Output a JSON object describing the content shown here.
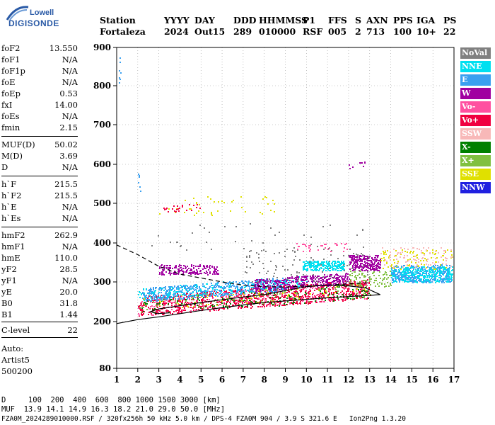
{
  "logo": {
    "line1": "Lowell",
    "line2": "DIGISONDE"
  },
  "header": {
    "row1": [
      "Station",
      "YYYY",
      "DAY",
      "DDD",
      "HHMMSS",
      "P1",
      "FFS",
      "S",
      "AXN",
      "PPS",
      "IGA",
      "PS"
    ],
    "row2": [
      "Fortaleza",
      "2024",
      "Out15",
      "289",
      "010000",
      "RSF",
      "005",
      "2",
      "713",
      "100",
      "10+",
      "22"
    ]
  },
  "params_group1": [
    {
      "name": "foF2",
      "value": "13.550"
    },
    {
      "name": "foF1",
      "value": "N/A"
    },
    {
      "name": "foF1p",
      "value": "N/A"
    },
    {
      "name": "foE",
      "value": "N/A"
    },
    {
      "name": "foEp",
      "value": "0.53"
    },
    {
      "name": "fxI",
      "value": "14.00"
    },
    {
      "name": "foEs",
      "value": "N/A"
    },
    {
      "name": "fmin",
      "value": "2.15"
    }
  ],
  "params_group2": [
    {
      "name": "MUF(D)",
      "value": "50.02"
    },
    {
      "name": "M(D)",
      "value": "3.69"
    },
    {
      "name": "D",
      "value": "N/A"
    }
  ],
  "params_group3": [
    {
      "name": "h`F",
      "value": "215.5"
    },
    {
      "name": "h`F2",
      "value": "215.5"
    },
    {
      "name": "h`E",
      "value": "N/A"
    },
    {
      "name": "h`Es",
      "value": "N/A"
    }
  ],
  "params_group4": [
    {
      "name": "hmF2",
      "value": "262.9"
    },
    {
      "name": "hmF1",
      "value": "N/A"
    },
    {
      "name": "hmE",
      "value": "110.0"
    },
    {
      "name": "yF2",
      "value": "28.5"
    },
    {
      "name": "yF1",
      "value": "N/A"
    },
    {
      "name": "yE",
      "value": "20.0"
    },
    {
      "name": "B0",
      "value": "31.8"
    },
    {
      "name": "B1",
      "value": "1.44"
    }
  ],
  "params_group5": [
    {
      "name": "C-level",
      "value": "22"
    }
  ],
  "auto": {
    "line1": "Auto:",
    "line2": "Artist5",
    "line3": "500200"
  },
  "legend": [
    {
      "label": "NoVal",
      "color": "#808080"
    },
    {
      "label": "NNE",
      "color": "#00e0f0"
    },
    {
      "label": "E",
      "color": "#3aa0f0"
    },
    {
      "label": "W",
      "color": "#a000a0"
    },
    {
      "label": "Vo-",
      "color": "#ff50a0"
    },
    {
      "label": "Vo+",
      "color": "#f00040"
    },
    {
      "label": "SSW",
      "color": "#f8b8b8"
    },
    {
      "label": "X-",
      "color": "#008000"
    },
    {
      "label": "X+",
      "color": "#80c040"
    },
    {
      "label": "SSE",
      "color": "#e0e000"
    },
    {
      "label": "NNW",
      "color": "#2020e0"
    }
  ],
  "footer": {
    "line1": "D     100  200  400  600  800 1000 1500 3000 [km]",
    "line2": "MUF  13.9 14.1 14.9 16.3 18.2 21.0 29.0 50.0 [MHz]",
    "line3": "FZA0M_2024289010000.RSF / 320fx256h 50 kHz 5.0 km / DPS-4 FZA0M 904 / 3.9 S 321.6 E   Ion2Png 1.3.20"
  },
  "chart_data": {
    "type": "scatter",
    "x_ticks": [
      "1",
      "2",
      "3",
      "4",
      "5",
      "6",
      "7",
      "8",
      "9",
      "10",
      "11",
      "12",
      "13",
      "14",
      "15",
      "16",
      "17"
    ],
    "y_ticks": [
      "80",
      "200",
      "300",
      "400",
      "500",
      "600",
      "700",
      "800",
      "900"
    ],
    "xlim": [
      1,
      17
    ],
    "y_axis_scale": "height km, ticks at 80, 200, 300 ... 900",
    "grid": "dotted",
    "legend_position": "right",
    "traces": {
      "dashed": [
        [
          1,
          395
        ],
        [
          2,
          370
        ],
        [
          3,
          340
        ],
        [
          4,
          320
        ],
        [
          5,
          310
        ],
        [
          6,
          300
        ],
        [
          7,
          292
        ],
        [
          8,
          288
        ],
        [
          9,
          287
        ],
        [
          10,
          290
        ],
        [
          11,
          292
        ],
        [
          12,
          295
        ],
        [
          13,
          298
        ]
      ],
      "solid": [
        [
          1,
          195
        ],
        [
          2,
          205
        ],
        [
          3,
          212
        ],
        [
          4,
          220
        ],
        [
          5,
          228
        ],
        [
          6,
          235
        ],
        [
          7,
          242
        ],
        [
          8,
          248
        ],
        [
          9,
          252
        ],
        [
          10,
          256
        ],
        [
          11,
          260
        ],
        [
          12,
          263
        ],
        [
          13,
          266
        ],
        [
          13.5,
          268
        ],
        [
          12.8,
          285
        ],
        [
          12,
          290
        ],
        [
          11,
          292
        ],
        [
          10,
          288
        ],
        [
          9,
          278
        ],
        [
          8,
          268
        ],
        [
          7,
          262
        ],
        [
          6,
          255
        ],
        [
          5,
          248
        ],
        [
          4,
          240
        ],
        [
          3,
          232
        ],
        [
          2.6,
          225
        ],
        [
          2.9,
          220
        ],
        [
          3.5,
          222
        ]
      ]
    },
    "echo_regions": [
      {
        "xmin": 2.0,
        "xmax": 13.0,
        "hmin": 215,
        "hmax": 265,
        "color": "#f00040",
        "density": 1600
      },
      {
        "xmin": 2.0,
        "xmax": 13.0,
        "hmin": 215,
        "hmax": 260,
        "color": "#ff50a0",
        "density": 400
      },
      {
        "xmin": 2.0,
        "xmax": 13.0,
        "hmin": 215,
        "hmax": 255,
        "color": "#008000",
        "density": 250
      },
      {
        "xmin": 2.0,
        "xmax": 13.0,
        "hmin": 220,
        "hmax": 260,
        "color": "#80c040",
        "density": 150
      },
      {
        "xmin": 2.0,
        "xmax": 13.0,
        "hmin": 225,
        "hmax": 260,
        "color": "#e0e000",
        "density": 120
      },
      {
        "xmin": 2.2,
        "xmax": 9.0,
        "hmin": 250,
        "hmax": 285,
        "color": "#3aa0f0",
        "density": 900
      },
      {
        "xmin": 2.0,
        "xmax": 10.0,
        "hmin": 255,
        "hmax": 285,
        "color": "#00e0f0",
        "density": 300
      },
      {
        "xmin": 7.5,
        "xmax": 12.0,
        "hmin": 255,
        "hmax": 285,
        "color": "#a000a0",
        "density": 600
      },
      {
        "xmin": 3.0,
        "xmax": 5.8,
        "hmin": 320,
        "hmax": 345,
        "color": "#a000a0",
        "density": 300
      },
      {
        "xmin": 9.8,
        "xmax": 11.8,
        "hmin": 330,
        "hmax": 355,
        "color": "#00e0f0",
        "density": 400
      },
      {
        "xmin": 12.0,
        "xmax": 13.5,
        "hmin": 330,
        "hmax": 370,
        "color": "#a000a0",
        "density": 400
      },
      {
        "xmin": 14.0,
        "xmax": 16.9,
        "hmin": 300,
        "hmax": 345,
        "color": "#3aa0f0",
        "density": 700
      },
      {
        "xmin": 14.0,
        "xmax": 16.9,
        "hmin": 300,
        "hmax": 340,
        "color": "#00e0f0",
        "density": 400
      },
      {
        "xmin": 13.5,
        "xmax": 16.9,
        "hmin": 335,
        "hmax": 385,
        "color": "#e0e000",
        "density": 150
      },
      {
        "xmin": 13.5,
        "xmax": 16.9,
        "hmin": 335,
        "hmax": 390,
        "color": "#f8b8b8",
        "density": 150
      },
      {
        "xmin": 12.0,
        "xmax": 14.0,
        "hmin": 290,
        "hmax": 330,
        "color": "#80c040",
        "density": 150
      },
      {
        "xmin": 7.0,
        "xmax": 13.0,
        "hmin": 300,
        "hmax": 390,
        "color": "#808080",
        "density": 180
      },
      {
        "xmin": 3.0,
        "xmax": 8.5,
        "hmin": 470,
        "hmax": 520,
        "color": "#e0e000",
        "density": 70
      },
      {
        "xmin": 3.0,
        "xmax": 5.0,
        "hmin": 480,
        "hmax": 500,
        "color": "#f00040",
        "density": 40
      },
      {
        "xmin": 1.0,
        "xmax": 1.2,
        "hmin": 800,
        "hmax": 880,
        "color": "#3aa0f0",
        "density": 12
      },
      {
        "xmin": 2.0,
        "xmax": 2.1,
        "hmin": 520,
        "hmax": 580,
        "color": "#3aa0f0",
        "density": 10
      },
      {
        "xmin": 12.0,
        "xmax": 13.3,
        "hmin": 590,
        "hmax": 610,
        "color": "#a000a0",
        "density": 15
      },
      {
        "xmin": 9.5,
        "xmax": 12.0,
        "hmin": 380,
        "hmax": 400,
        "color": "#ff50a0",
        "density": 60
      },
      {
        "xmin": 2.0,
        "xmax": 13.0,
        "hmin": 380,
        "hmax": 450,
        "color": "#808080",
        "density": 60
      }
    ]
  }
}
